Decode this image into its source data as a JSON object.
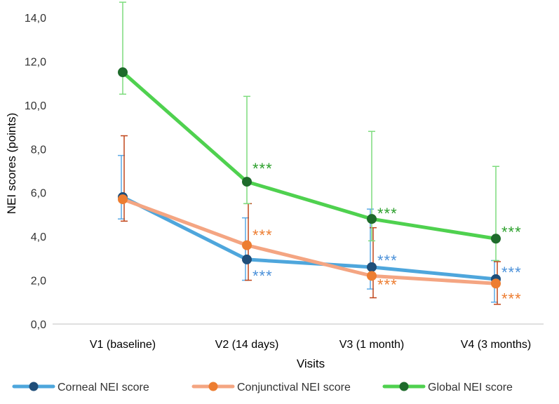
{
  "chart_data": {
    "type": "line",
    "title": "",
    "xlabel": "Visits",
    "ylabel": "NEI scores (points)",
    "categories": [
      "V1 (baseline)",
      "V2 (14 days)",
      "V3 (1 month)",
      "V4 (3 months)"
    ],
    "ylim": [
      0,
      14
    ],
    "yticks": [
      0,
      2,
      4,
      6,
      8,
      10,
      12,
      14
    ],
    "ytick_labels": [
      "0,0",
      "2,0",
      "4,0",
      "6,0",
      "8,0",
      "10,0",
      "12,0",
      "14,0"
    ],
    "grid": false,
    "legend_position": "bottom",
    "series": [
      {
        "name": "Corneal NEI score",
        "line_color": "#4ea6dc",
        "marker_color": "#1f4e79",
        "values": [
          5.8,
          2.95,
          2.6,
          2.05
        ],
        "errors": [
          [
            4.8,
            7.7
          ],
          [
            2.0,
            4.85
          ],
          [
            1.6,
            5.25
          ],
          [
            1.0,
            2.9
          ]
        ],
        "significance": [
          "",
          "***",
          "***",
          "***"
        ],
        "sig_color": "#4a90d9",
        "sig_offset": [
          0,
          -0.7,
          0.35,
          0.35
        ]
      },
      {
        "name": "Conjunctival NEI score",
        "line_color": "#f4a582",
        "marker_color": "#ed7d31",
        "values": [
          5.7,
          3.6,
          2.2,
          1.85
        ],
        "errors": [
          [
            4.7,
            8.6
          ],
          [
            2.0,
            5.5
          ],
          [
            1.2,
            4.4
          ],
          [
            0.9,
            2.85
          ]
        ],
        "significance": [
          "",
          "***",
          "***",
          "***"
        ],
        "sig_color": "#ed7d31",
        "sig_offset": [
          0,
          0.5,
          -0.35,
          -0.65
        ]
      },
      {
        "name": "Global NEI score",
        "line_color": "#4fd14f",
        "marker_color": "#1e6b2b",
        "values": [
          11.5,
          6.5,
          4.8,
          3.9
        ],
        "errors": [
          [
            10.5,
            14.7
          ],
          [
            5.5,
            10.4
          ],
          [
            3.8,
            8.8
          ],
          [
            2.9,
            7.2
          ]
        ],
        "significance": [
          "",
          "***",
          "***",
          "***"
        ],
        "sig_color": "#2ca02c",
        "sig_offset": [
          0,
          0.65,
          0.3,
          0.35
        ]
      }
    ]
  }
}
